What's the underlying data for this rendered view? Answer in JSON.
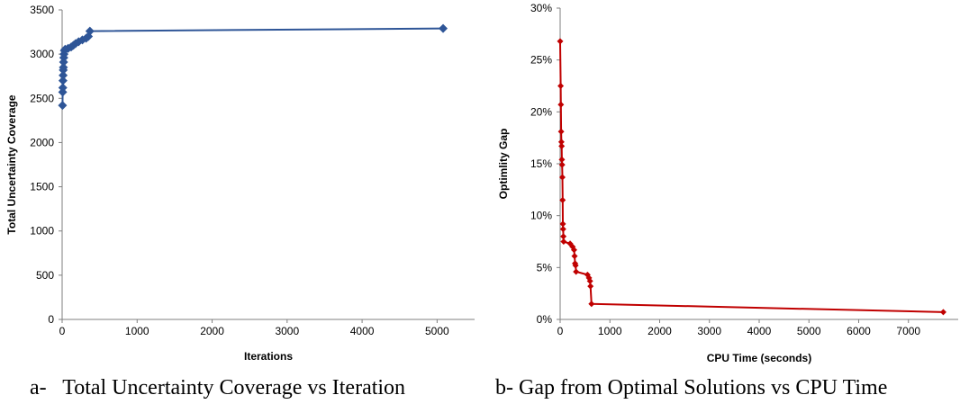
{
  "chart_data": [
    {
      "type": "scatter",
      "title": "",
      "xlabel": "Iterations",
      "ylabel": "Total Uncertainty Coverage",
      "xlim": [
        0,
        5500
      ],
      "ylim": [
        0,
        3500
      ],
      "xticks": [
        0,
        1000,
        2000,
        3000,
        4000,
        5000
      ],
      "yticks": [
        0,
        500,
        1000,
        1500,
        2000,
        2500,
        3000,
        3500
      ],
      "xtick_labels": [
        "0",
        "1000",
        "2000",
        "3000",
        "4000",
        "5000"
      ],
      "ytick_labels": [
        "0",
        "500",
        "1000",
        "1500",
        "2000",
        "2500",
        "3000",
        "3500"
      ],
      "grid": false,
      "series": [
        {
          "color": "#2e5597",
          "marker": "diamond",
          "line": true,
          "points": [
            [
              5,
              2420
            ],
            [
              7,
              2570
            ],
            [
              9,
              2620
            ],
            [
              11,
              2700
            ],
            [
              13,
              2760
            ],
            [
              15,
              2820
            ],
            [
              17,
              2850
            ],
            [
              19,
              2910
            ],
            [
              22,
              2960
            ],
            [
              25,
              3000
            ],
            [
              30,
              3040
            ],
            [
              40,
              3055
            ],
            [
              80,
              3065
            ],
            [
              120,
              3080
            ],
            [
              150,
              3100
            ],
            [
              180,
              3120
            ],
            [
              220,
              3140
            ],
            [
              270,
              3160
            ],
            [
              320,
              3180
            ],
            [
              350,
              3200
            ],
            [
              370,
              3260
            ],
            [
              5080,
              3290
            ]
          ]
        }
      ],
      "caption": "a-   Total Uncertainty Coverage vs Iteration"
    },
    {
      "type": "line",
      "title": "",
      "xlabel": "CPU  Time (seconds)",
      "ylabel": "Optimlity  Gap",
      "xlim": [
        0,
        8000
      ],
      "ylim": [
        0,
        30
      ],
      "xticks": [
        0,
        1000,
        2000,
        3000,
        4000,
        5000,
        6000,
        7000
      ],
      "yticks": [
        0,
        5,
        10,
        15,
        20,
        25,
        30
      ],
      "xtick_labels": [
        "0",
        "1000",
        "2000",
        "3000",
        "4000",
        "5000",
        "6000",
        "7000"
      ],
      "ytick_labels": [
        "0%",
        "5%",
        "10%",
        "15%",
        "20%",
        "25%",
        "30%"
      ],
      "grid": false,
      "series": [
        {
          "color": "#c00000",
          "marker": "diamond",
          "line": true,
          "points": [
            [
              0,
              26.8
            ],
            [
              10,
              22.5
            ],
            [
              15,
              20.7
            ],
            [
              20,
              18.1
            ],
            [
              25,
              17.1
            ],
            [
              30,
              16.7
            ],
            [
              35,
              15.4
            ],
            [
              40,
              14.9
            ],
            [
              45,
              13.7
            ],
            [
              50,
              11.5
            ],
            [
              55,
              9.2
            ],
            [
              60,
              8.7
            ],
            [
              65,
              8.0
            ],
            [
              70,
              7.5
            ],
            [
              200,
              7.3
            ],
            [
              250,
              7.0
            ],
            [
              280,
              6.7
            ],
            [
              290,
              6.1
            ],
            [
              300,
              5.4
            ],
            [
              310,
              5.2
            ],
            [
              320,
              4.6
            ],
            [
              550,
              4.3
            ],
            [
              580,
              4.0
            ],
            [
              600,
              3.7
            ],
            [
              610,
              3.2
            ],
            [
              630,
              1.5
            ],
            [
              7700,
              0.7
            ]
          ]
        }
      ],
      "caption": "b- Gap from Optimal Solutions vs CPU Time"
    }
  ]
}
